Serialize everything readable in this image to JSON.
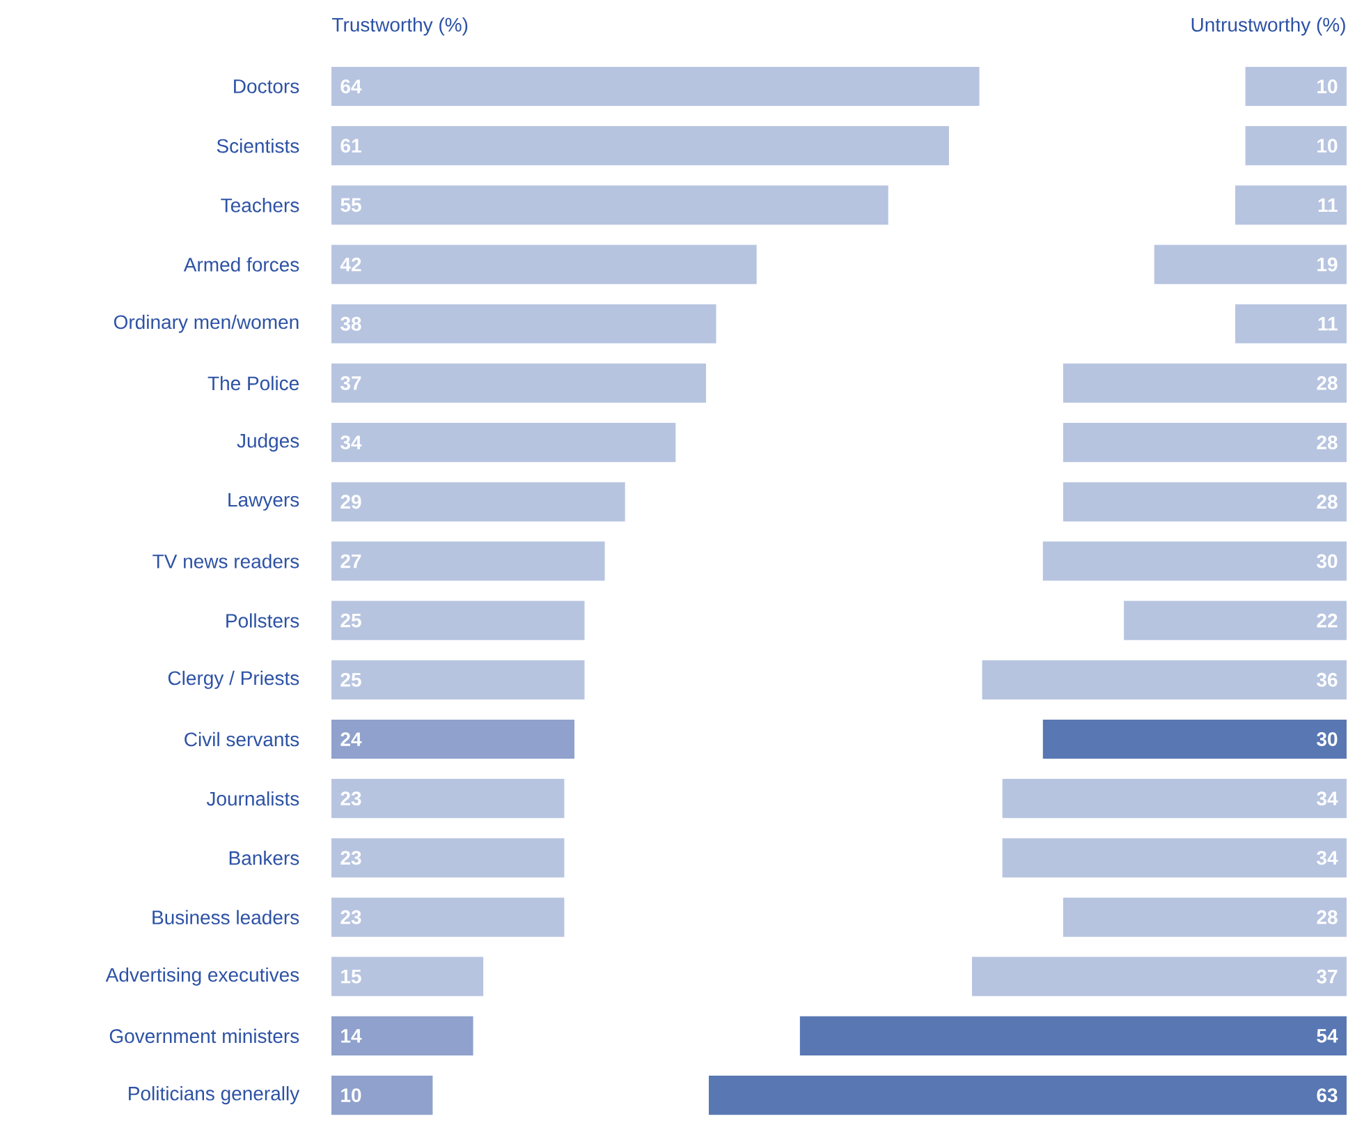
{
  "chart_data": [
    {
      "type": "bar",
      "orientation": "horizontal",
      "title": "Trustworthy (%)",
      "categories": [
        "Doctors",
        "Scientists",
        "Teachers",
        "Armed forces",
        "Ordinary men/women",
        "The Police",
        "Judges",
        "Lawyers",
        "TV news readers",
        "Pollsters",
        "Clergy / Priests",
        "Civil servants",
        "Journalists",
        "Bankers",
        "Business leaders",
        "Advertising executives",
        "Government ministers",
        "Politicians generally"
      ],
      "values": [
        64,
        61,
        55,
        42,
        38,
        37,
        34,
        29,
        27,
        25,
        25,
        24,
        23,
        23,
        23,
        15,
        14,
        10
      ],
      "colors": [
        "#b7c4e0",
        "#b7c4e0",
        "#b7c4e0",
        "#b7c4e0",
        "#b7c4e0",
        "#b7c4e0",
        "#b7c4e0",
        "#b7c4e0",
        "#b7c4e0",
        "#b7c4e0",
        "#b7c4e0",
        "#8fa1cc",
        "#b7c4e0",
        "#b7c4e0",
        "#b7c4e0",
        "#b7c4e0",
        "#8fa1cc",
        "#8fa1cc"
      ],
      "xlim": [
        0,
        64
      ],
      "data_labels": true,
      "tick_labels": "y"
    },
    {
      "type": "bar",
      "orientation": "horizontal",
      "title": "Untrustworthy (%)",
      "categories": [
        null,
        null,
        null,
        null,
        null,
        null,
        null,
        null,
        null,
        null,
        null,
        null,
        null,
        null,
        null,
        null,
        null,
        null
      ],
      "values": [
        10,
        10,
        11,
        19,
        11,
        28,
        28,
        28,
        30,
        22,
        36,
        30,
        34,
        34,
        28,
        37,
        54,
        63
      ],
      "colors": [
        "#b7c4e0",
        "#b7c4e0",
        "#b7c4e0",
        "#b7c4e0",
        "#b7c4e0",
        "#b7c4e0",
        "#b7c4e0",
        "#b7c4e0",
        "#b7c4e0",
        "#b7c4e0",
        "#b7c4e0",
        "#5877b3",
        "#b7c4e0",
        "#b7c4e0",
        "#b7c4e0",
        "#b7c4e0",
        "#5877b3",
        "#5877b3"
      ],
      "xlim": [
        63,
        0
      ],
      "data_labels": true
    }
  ]
}
